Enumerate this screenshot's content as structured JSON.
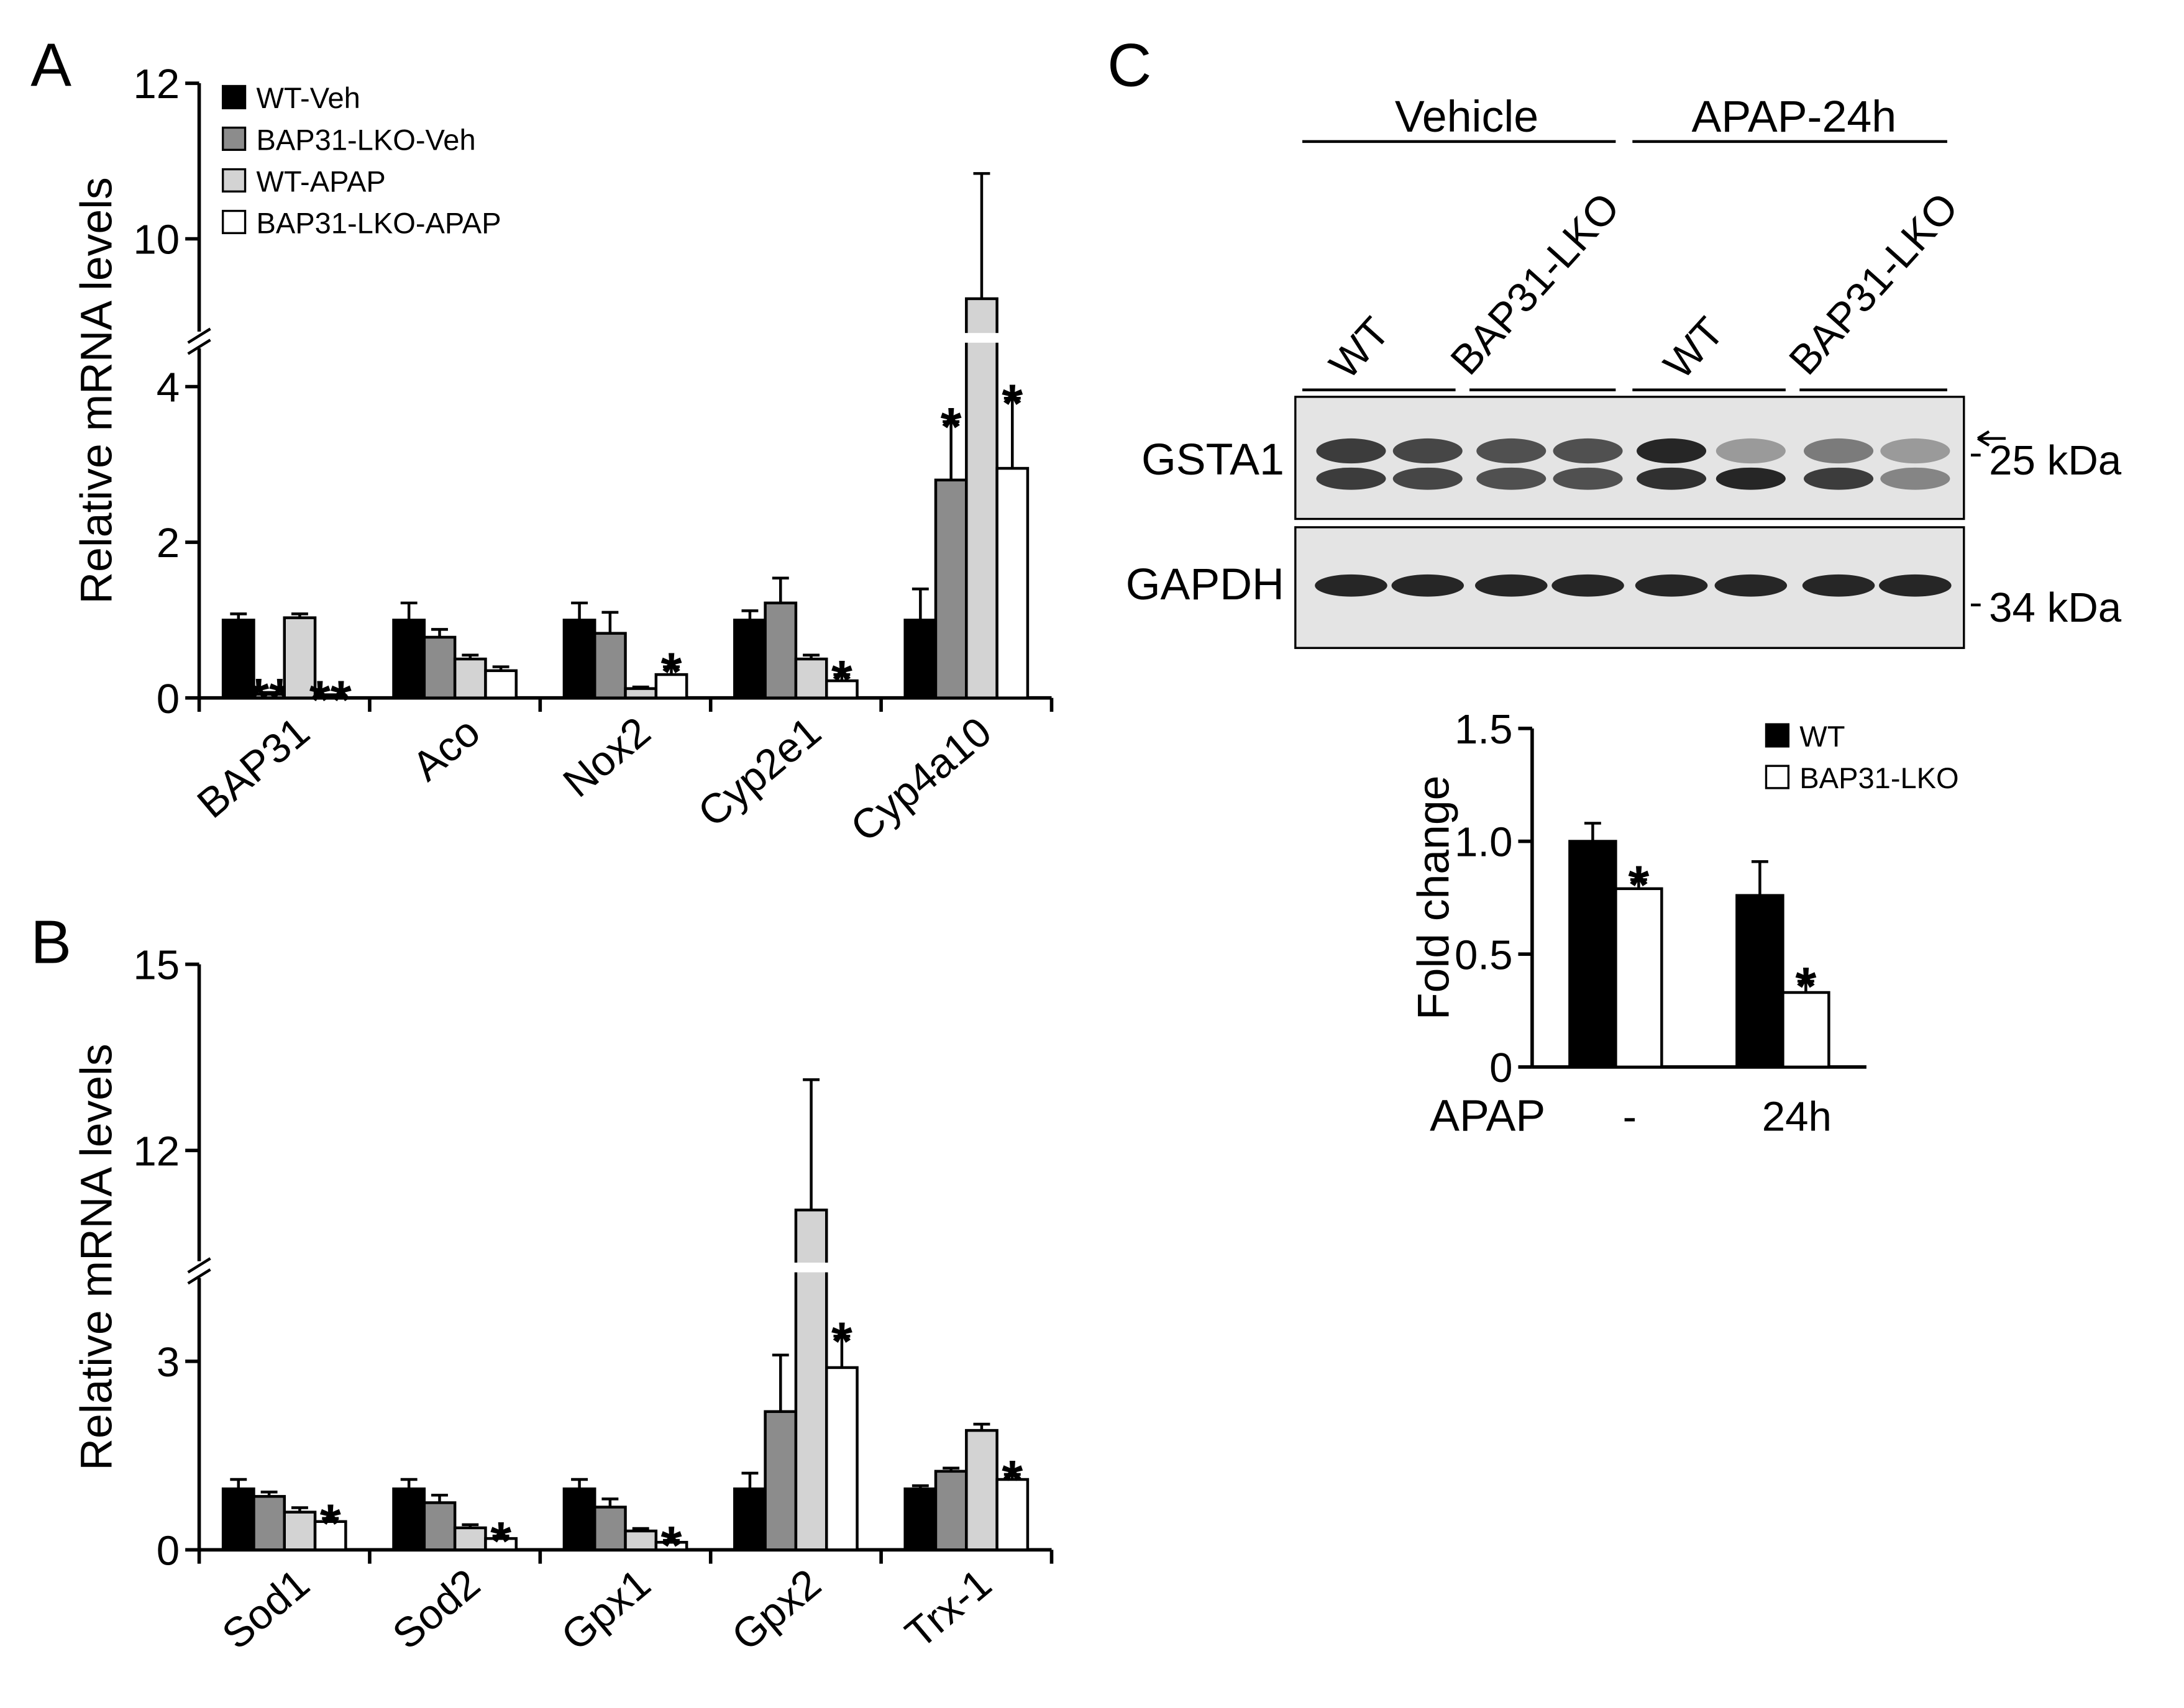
{
  "panel_labels": [
    "A",
    "B",
    "C"
  ],
  "chart_data": [
    {
      "type": "bar",
      "ylabel": "Relative mRNA levels",
      "categories": [
        "BAP31",
        "Aco",
        "Nox2",
        "Cyp2e1",
        "Cyp4a10"
      ],
      "ylim": [
        0,
        12
      ],
      "ybreak": [
        4.6,
        8.7
      ],
      "yticks": [
        0,
        2,
        4,
        10,
        12
      ],
      "legend": "upper left",
      "series": [
        {
          "name": "WT-Veh",
          "color": "#000000",
          "values": [
            1.0,
            1.0,
            1.0,
            1.0,
            1.0
          ],
          "errors": [
            0.08,
            0.22,
            0.22,
            0.12,
            0.4
          ],
          "stars": [
            null,
            null,
            null,
            null,
            null
          ]
        },
        {
          "name": "BAP31-LKO-Veh",
          "color": "#8c8c8c",
          "values": [
            0.05,
            0.78,
            0.83,
            1.22,
            2.8
          ],
          "errors": [
            0.02,
            0.1,
            0.27,
            0.32,
            0.75
          ],
          "stars": [
            "**",
            null,
            null,
            null,
            "*"
          ]
        },
        {
          "name": "WT-APAP",
          "color": "#d3d3d3",
          "values": [
            1.03,
            0.5,
            0.12,
            0.5,
            9.23
          ],
          "errors": [
            0.05,
            0.05,
            0.02,
            0.05,
            1.61
          ],
          "stars": [
            null,
            null,
            null,
            null,
            null
          ]
        },
        {
          "name": "BAP31-LKO-APAP",
          "color": "#ffffff",
          "values": [
            0.03,
            0.35,
            0.3,
            0.22,
            2.95
          ],
          "errors": [
            0.01,
            0.05,
            0.1,
            0.08,
            0.9
          ],
          "stars": [
            "**",
            null,
            "*",
            "*",
            "*"
          ]
        }
      ]
    },
    {
      "type": "bar",
      "ylabel": "Relative mRNA levels",
      "categories": [
        "Sod1",
        "Sod2",
        "Gpx1",
        "Gpx2",
        "Trx-1"
      ],
      "ylim": [
        0,
        15
      ],
      "ybreak": [
        4.46,
        10.08
      ],
      "yticks": [
        0,
        3,
        12,
        15
      ],
      "series": [
        {
          "color": "#000000",
          "values": [
            0.97,
            0.97,
            0.97,
            0.97,
            0.97
          ],
          "errors": [
            0.15,
            0.15,
            0.15,
            0.25,
            0.05
          ],
          "stars": [
            null,
            null,
            null,
            null,
            null
          ]
        },
        {
          "color": "#8c8c8c",
          "values": [
            0.85,
            0.75,
            0.68,
            2.2,
            1.25
          ],
          "errors": [
            0.07,
            0.12,
            0.13,
            0.9,
            0.05
          ],
          "stars": [
            null,
            null,
            null,
            null,
            null
          ]
        },
        {
          "color": "#d3d3d3",
          "values": [
            0.6,
            0.35,
            0.3,
            11.04,
            1.9
          ],
          "errors": [
            0.07,
            0.05,
            0.04,
            2.1,
            0.1
          ],
          "stars": [
            null,
            null,
            null,
            null,
            null
          ]
        },
        {
          "color": "#ffffff",
          "values": [
            0.45,
            0.18,
            0.12,
            2.9,
            1.12
          ],
          "errors": [
            0.05,
            0.04,
            0.03,
            0.5,
            0.08
          ],
          "stars": [
            "*",
            "*",
            "*",
            "*",
            "*"
          ]
        }
      ]
    },
    {
      "type": "bar",
      "ylabel": "Fold change",
      "xlabel": "APAP",
      "categories": [
        "-",
        "24h"
      ],
      "ylim": [
        0,
        1.5
      ],
      "yticks": [
        0,
        0.5,
        {
          "value": 1,
          "label": "1.0"
        },
        1.5
      ],
      "legend": "upper right",
      "series": [
        {
          "name": "WT",
          "color": "#000000",
          "values": [
            1.0,
            0.76
          ],
          "errors": [
            0.08,
            0.15
          ],
          "stars": [
            null,
            null
          ]
        },
        {
          "name": "BAP31-LKO",
          "color": "#ffffff",
          "values": [
            0.79,
            0.33
          ],
          "errors": [
            0.04,
            0.05
          ],
          "stars": [
            "*",
            "*"
          ]
        }
      ]
    }
  ],
  "blot": {
    "groups": [
      "Vehicle",
      "APAP-24h"
    ],
    "lanes": [
      "WT",
      "BAP31-LKO",
      "WT",
      "BAP31-LKO"
    ],
    "rows": [
      "GSTA1",
      "GAPDH"
    ],
    "markers": [
      "25 kDa",
      "34 kDa"
    ]
  }
}
